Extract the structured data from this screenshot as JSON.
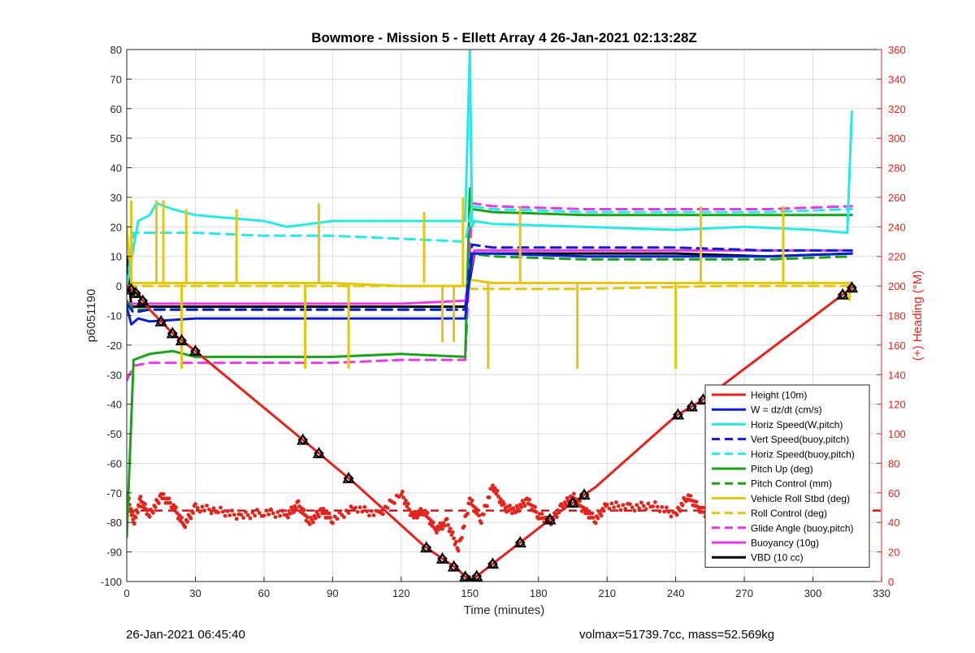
{
  "chart_data": {
    "type": "line",
    "title": "Bowmore - Mission 5 - Ellett Array 4 26-Jan-2021 02:13:28Z",
    "xlabel": "Time (minutes)",
    "ylabel": "p6051190",
    "y2label": "(+) Heading (°M)",
    "xlim": [
      0,
      330
    ],
    "ylim": [
      -100,
      80
    ],
    "y2lim": [
      0,
      360
    ],
    "xticks": [
      0,
      30,
      60,
      90,
      120,
      150,
      180,
      210,
      240,
      270,
      300,
      330
    ],
    "yticks": [
      -100,
      -90,
      -80,
      -70,
      -60,
      -50,
      -40,
      -30,
      -20,
      -10,
      0,
      10,
      20,
      30,
      40,
      50,
      60,
      70,
      80
    ],
    "y2ticks": [
      0,
      20,
      40,
      60,
      80,
      100,
      120,
      140,
      160,
      180,
      200,
      220,
      240,
      260,
      280,
      300,
      320,
      340,
      360
    ],
    "grid": true,
    "legend_position": "bottom-right",
    "colors": {
      "height": "#e3231c",
      "w": "#0a1fd1",
      "horiz_w": "#27e8e8",
      "vert_buoy": "#0a1fd1",
      "horiz_buoy": "#27e8e8",
      "pitch_up": "#1aa21a",
      "pitch_ctrl": "#1aa21a",
      "roll": "#e3c60f",
      "roll_ctrl": "#e3c60f",
      "glide": "#e43be4",
      "buoyancy": "#e43be4",
      "vbd": "#000000",
      "axis_right": "#e3231c",
      "heading_avg": "#c81818"
    },
    "series": [
      {
        "name": "Height (10m)",
        "style": "solid",
        "color_key": "height",
        "x": [
          0,
          5,
          10,
          20,
          30,
          80,
          100,
          130,
          145,
          150,
          160,
          175,
          190,
          205,
          240,
          253,
          318
        ],
        "y": [
          0,
          -3,
          -8,
          -16,
          -22,
          -54,
          -67,
          -88,
          -96,
          -100,
          -94,
          -85,
          -76,
          -68,
          -44,
          -38,
          0
        ]
      },
      {
        "name": "W = dz/dt (cm/s)",
        "style": "solid",
        "color_key": "w",
        "x": [
          0,
          2,
          5,
          10,
          30,
          60,
          90,
          120,
          135,
          148,
          151,
          160,
          200,
          240,
          280,
          317
        ],
        "y": [
          -7,
          -13,
          -11,
          -12,
          -11,
          -11,
          -11,
          -11,
          -11,
          -11,
          11,
          11,
          10,
          10,
          10,
          11
        ]
      },
      {
        "name": "Horiz Speed(W,pitch)",
        "style": "solid",
        "color_key": "horiz_w",
        "x": [
          0,
          5,
          10,
          13,
          20,
          30,
          60,
          70,
          90,
          120,
          140,
          148,
          150,
          151,
          152,
          160,
          200,
          240,
          270,
          300,
          315,
          317
        ],
        "y": [
          0,
          22,
          24,
          28,
          26,
          24,
          22,
          20,
          22,
          22,
          22,
          22,
          80,
          20,
          22,
          21,
          20,
          19,
          20,
          19,
          18,
          59
        ]
      },
      {
        "name": "Vert Speed(buoy,pitch)",
        "style": "dashed",
        "color_key": "vert_buoy",
        "x": [
          0,
          3,
          10,
          30,
          60,
          90,
          120,
          148,
          151,
          160,
          200,
          240,
          280,
          317
        ],
        "y": [
          -6,
          -9,
          -8,
          -8,
          -8,
          -8,
          -8,
          -8,
          14,
          13,
          13,
          13,
          12,
          12
        ]
      },
      {
        "name": "Horiz Speed(buoy,pitch)",
        "style": "dashed",
        "color_key": "horiz_buoy",
        "x": [
          0,
          3,
          10,
          30,
          60,
          90,
          120,
          148,
          151,
          160,
          200,
          240,
          280,
          317
        ],
        "y": [
          0,
          18,
          18,
          18,
          17,
          17,
          16,
          15,
          27,
          26,
          25,
          25,
          25,
          26
        ]
      },
      {
        "name": "Pitch Up (deg)",
        "style": "solid",
        "color_key": "pitch_up",
        "x": [
          0,
          3,
          10,
          20,
          30,
          60,
          90,
          120,
          148,
          150,
          151,
          160,
          200,
          240,
          280,
          317
        ],
        "y": [
          -85,
          -25,
          -23,
          -22,
          -24,
          -24,
          -24,
          -23,
          -24,
          33,
          26,
          25,
          24,
          24,
          24,
          24
        ]
      },
      {
        "name": "Pitch Control (mm)",
        "style": "dashed",
        "color_key": "pitch_ctrl",
        "x": [
          0,
          3,
          10,
          30,
          60,
          90,
          120,
          148,
          151,
          160,
          200,
          240,
          280,
          317
        ],
        "y": [
          -5,
          -8,
          -8,
          -8,
          -8,
          -8,
          -8,
          -8,
          11,
          10,
          9,
          9,
          9,
          10
        ]
      },
      {
        "name": "Vehicle Roll Stbd (deg)",
        "style": "solid",
        "color_key": "roll",
        "x": [
          0,
          2,
          10,
          30,
          60,
          90,
          120,
          148,
          151,
          160,
          200,
          240,
          280,
          317
        ],
        "y": [
          20,
          1,
          1,
          1,
          1,
          1,
          0,
          0,
          2,
          1,
          1,
          1,
          1,
          1
        ]
      },
      {
        "name": "Roll Control (deg)",
        "style": "dashed",
        "color_key": "roll_ctrl",
        "x": [
          0,
          10,
          60,
          120,
          148,
          151,
          200,
          260,
          317
        ],
        "y": [
          0,
          0,
          0,
          0,
          0,
          -1,
          -1,
          0,
          0
        ]
      },
      {
        "name": "Glide Angle (buoy,pitch)",
        "style": "dashed",
        "color_key": "glide",
        "x": [
          0,
          3,
          10,
          30,
          60,
          90,
          120,
          148,
          151,
          160,
          200,
          240,
          280,
          317
        ],
        "y": [
          -32,
          -27,
          -26,
          -26,
          -26,
          -26,
          -25,
          -25,
          28,
          27,
          26,
          26,
          26,
          27
        ]
      },
      {
        "name": "Buoyancy (10g)",
        "style": "solid",
        "color_key": "buoyancy",
        "x": [
          0,
          5,
          30,
          60,
          90,
          120,
          148,
          152,
          200,
          240,
          280,
          317
        ],
        "y": [
          -6,
          -6,
          -6,
          -6,
          -6,
          -6,
          -5,
          12,
          12,
          12,
          12,
          12
        ]
      },
      {
        "name": "VBD (10 cc)",
        "style": "solid",
        "color_key": "vbd",
        "x": [
          0,
          1,
          2,
          10,
          30,
          60,
          90,
          120,
          148,
          152,
          200,
          240,
          280,
          317
        ],
        "y": [
          10,
          2,
          -7,
          -7,
          -7,
          -7,
          -7,
          -7,
          -7,
          11,
          11,
          11,
          10,
          11
        ]
      }
    ],
    "spikes": [
      {
        "x": 2,
        "y1": 1,
        "y2": 29,
        "color_key": "roll"
      },
      {
        "x": 13,
        "y1": 1,
        "y2": 29,
        "color_key": "roll"
      },
      {
        "x": 16,
        "y1": 1,
        "y2": 29,
        "color_key": "roll"
      },
      {
        "x": 24,
        "y1": 1,
        "y2": -28,
        "color_key": "roll"
      },
      {
        "x": 26,
        "y1": 1,
        "y2": 26,
        "color_key": "roll"
      },
      {
        "x": 48,
        "y1": 1,
        "y2": 26,
        "color_key": "roll"
      },
      {
        "x": 78,
        "y1": 1,
        "y2": -28,
        "color_key": "roll"
      },
      {
        "x": 84,
        "y1": 1,
        "y2": 28,
        "color_key": "roll"
      },
      {
        "x": 97,
        "y1": 1,
        "y2": -28,
        "color_key": "roll"
      },
      {
        "x": 130,
        "y1": 1,
        "y2": 25,
        "color_key": "roll"
      },
      {
        "x": 138,
        "y1": 0,
        "y2": -19,
        "color_key": "roll"
      },
      {
        "x": 143,
        "y1": 0,
        "y2": -19,
        "color_key": "roll"
      },
      {
        "x": 147,
        "y1": 0,
        "y2": 30,
        "color_key": "roll"
      },
      {
        "x": 158,
        "y1": 1,
        "y2": -28,
        "color_key": "roll"
      },
      {
        "x": 172,
        "y1": 1,
        "y2": 27,
        "color_key": "roll"
      },
      {
        "x": 197,
        "y1": 1,
        "y2": -28,
        "color_key": "roll"
      },
      {
        "x": 240,
        "y1": 1,
        "y2": -28,
        "color_key": "roll"
      },
      {
        "x": 251,
        "y1": 1,
        "y2": 27,
        "color_key": "roll"
      },
      {
        "x": 287,
        "y1": 1,
        "y2": 27,
        "color_key": "roll"
      },
      {
        "x": 316,
        "y1": 1,
        "y2": -5,
        "color_key": "roll"
      }
    ],
    "heading": {
      "axis": "right",
      "mean": 48,
      "x": [
        0,
        3,
        6,
        10,
        15,
        20,
        25,
        30,
        40,
        50,
        60,
        70,
        75,
        80,
        85,
        90,
        100,
        110,
        120,
        125,
        130,
        135,
        140,
        145,
        150,
        155,
        160,
        165,
        170,
        175,
        180,
        185,
        190,
        195,
        200,
        205,
        210,
        220,
        230,
        240,
        245,
        250,
        255,
        260,
        270,
        280,
        290,
        300,
        305,
        310,
        315
      ],
      "y": [
        60,
        40,
        55,
        45,
        58,
        52,
        38,
        50,
        48,
        44,
        47,
        45,
        52,
        40,
        48,
        42,
        50,
        45,
        60,
        44,
        48,
        35,
        40,
        22,
        55,
        42,
        65,
        50,
        48,
        55,
        45,
        40,
        50,
        58,
        48,
        42,
        52,
        50,
        52,
        45,
        58,
        50,
        44,
        48,
        46,
        50,
        45,
        48,
        38,
        42,
        48
      ]
    },
    "markers": {
      "style": "black triangle / diamond with white fill",
      "x": [
        2,
        4,
        7,
        15,
        20,
        24,
        30,
        77,
        84,
        97,
        131,
        138,
        143,
        148,
        150,
        153,
        160,
        172,
        185,
        195,
        200,
        241,
        247,
        252,
        313,
        317
      ]
    }
  },
  "footer": {
    "left": "26-Jan-2021 06:45:40",
    "right": "volmax=51739.7cc, mass=52.569kg"
  }
}
